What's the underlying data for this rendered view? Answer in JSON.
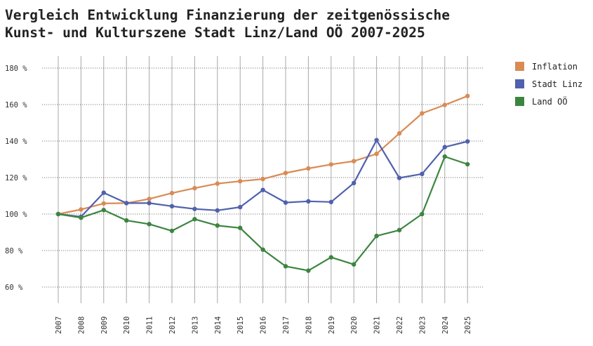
{
  "chart_data": {
    "type": "line",
    "title_lines": [
      "Vergleich Entwicklung Finanzierung der zeitgenössische",
      "Kunst- und Kulturszene Stadt Linz/Land OÖ 2007-2025"
    ],
    "x": [
      "2007",
      "2008",
      "2009",
      "2010",
      "2011",
      "2012",
      "2013",
      "2014",
      "2015",
      "2016",
      "2017",
      "2018",
      "2019",
      "2020",
      "2021",
      "2022",
      "2023",
      "2024",
      "2025"
    ],
    "yticks": [
      60,
      80,
      100,
      120,
      140,
      160,
      180
    ],
    "ytick_labels": [
      "60 %",
      "80 %",
      "100 %",
      "120 %",
      "140 %",
      "160 %",
      "180 %"
    ],
    "ylim": [
      50,
      188
    ],
    "grid": true,
    "legend_position": "right",
    "series": [
      {
        "name": "Inflation",
        "color": "#d98b55",
        "values": [
          100,
          102.5,
          105.8,
          106,
          108.3,
          111.5,
          114.2,
          116.7,
          118,
          119.2,
          122.5,
          125,
          127.2,
          129,
          133,
          144.2,
          155.2,
          159.8,
          164.7
        ]
      },
      {
        "name": "Stadt Linz",
        "color": "#5061ad",
        "values": [
          100,
          98.5,
          111.7,
          106,
          106,
          104.3,
          102.8,
          102,
          103.8,
          113.2,
          106.3,
          107,
          106.6,
          117,
          140.5,
          119.8,
          122,
          136.7,
          139.8
        ]
      },
      {
        "name": "Land OÖ",
        "color": "#3c8540",
        "values": [
          100,
          98,
          102.2,
          96.5,
          94.5,
          90.8,
          97.2,
          93.7,
          92.4,
          80.5,
          71.4,
          69,
          76.3,
          72.4,
          88,
          91.2,
          100,
          131.5,
          127.3
        ]
      }
    ]
  }
}
